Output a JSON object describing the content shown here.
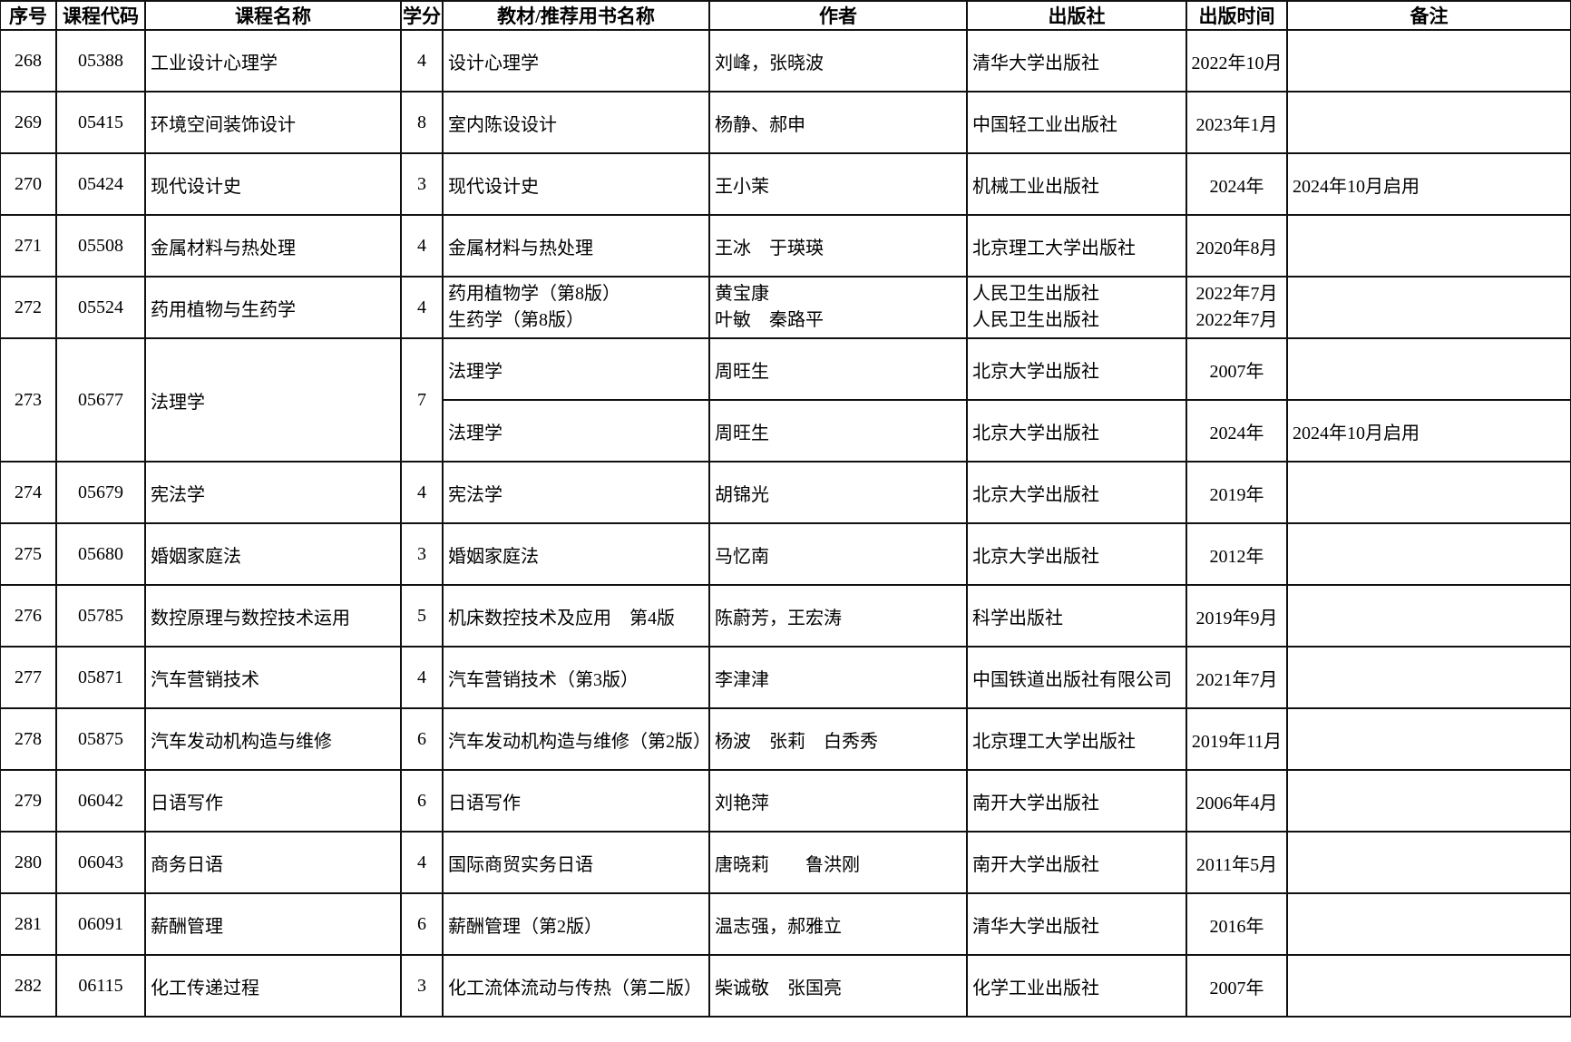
{
  "table": {
    "headers": [
      "序号",
      "课程代码",
      "课程名称",
      "学分",
      "教材/推荐用书名称",
      "作者",
      "出版社",
      "出版时间",
      "备注"
    ],
    "rows": [
      {
        "seq": "268",
        "code": "05388",
        "course": "工业设计心理学",
        "credits": "4",
        "split": false,
        "books": [
          {
            "title": "设计心理学",
            "author": "刘峰，张晓波",
            "publisher": "清华大学出版社",
            "date": "2022年10月",
            "remark": ""
          }
        ]
      },
      {
        "seq": "269",
        "code": "05415",
        "course": "环境空间装饰设计",
        "credits": "8",
        "split": false,
        "books": [
          {
            "title": "室内陈设设计",
            "author": "杨静、郝申",
            "publisher": "中国轻工业出版社",
            "date": "2023年1月",
            "remark": ""
          }
        ]
      },
      {
        "seq": "270",
        "code": "05424",
        "course": "现代设计史",
        "credits": "3",
        "split": false,
        "books": [
          {
            "title": "现代设计史",
            "author": "王小茉",
            "publisher": "机械工业出版社",
            "date": "2024年",
            "remark": "2024年10月启用"
          }
        ]
      },
      {
        "seq": "271",
        "code": "05508",
        "course": "金属材料与热处理",
        "credits": "4",
        "split": false,
        "books": [
          {
            "title": "金属材料与热处理",
            "author": "王冰　于瑛瑛",
            "publisher": "北京理工大学出版社",
            "date": "2020年8月",
            "remark": ""
          }
        ]
      },
      {
        "seq": "272",
        "code": "05524",
        "course": "药用植物与生药学",
        "credits": "4",
        "split": false,
        "books": [
          {
            "title": "药用植物学（第8版）",
            "author": "黄宝康",
            "publisher": "人民卫生出版社",
            "date": "2022年7月",
            "remark": ""
          },
          {
            "title": "生药学（第8版）",
            "author": "叶敏　秦路平",
            "publisher": "人民卫生出版社",
            "date": "2022年7月",
            "remark": ""
          }
        ]
      },
      {
        "seq": "273",
        "code": "05677",
        "course": "法理学",
        "credits": "7",
        "split": true,
        "books": [
          {
            "title": "法理学",
            "author": "周旺生",
            "publisher": "北京大学出版社",
            "date": "2007年",
            "remark": ""
          },
          {
            "title": "法理学",
            "author": "周旺生",
            "publisher": "北京大学出版社",
            "date": "2024年",
            "remark": "2024年10月启用"
          }
        ]
      },
      {
        "seq": "274",
        "code": "05679",
        "course": "宪法学",
        "credits": "4",
        "split": false,
        "books": [
          {
            "title": "宪法学",
            "author": "胡锦光",
            "publisher": "北京大学出版社",
            "date": "2019年",
            "remark": ""
          }
        ]
      },
      {
        "seq": "275",
        "code": "05680",
        "course": "婚姻家庭法",
        "credits": "3",
        "split": false,
        "books": [
          {
            "title": "婚姻家庭法",
            "author": "马忆南",
            "publisher": "北京大学出版社",
            "date": "2012年",
            "remark": ""
          }
        ]
      },
      {
        "seq": "276",
        "code": "05785",
        "course": "数控原理与数控技术运用",
        "credits": "5",
        "split": false,
        "books": [
          {
            "title": "机床数控技术及应用　第4版",
            "author": "陈蔚芳，王宏涛",
            "publisher": "科学出版社",
            "date": "2019年9月",
            "remark": ""
          }
        ]
      },
      {
        "seq": "277",
        "code": "05871",
        "course": "汽车营销技术",
        "credits": "4",
        "split": false,
        "books": [
          {
            "title": "汽车营销技术（第3版）",
            "author": "李津津",
            "publisher": "中国铁道出版社有限公司",
            "date": "2021年7月",
            "remark": ""
          }
        ]
      },
      {
        "seq": "278",
        "code": "05875",
        "course": "汽车发动机构造与维修",
        "credits": "6",
        "split": false,
        "books": [
          {
            "title": "汽车发动机构造与维修（第2版）",
            "author": "杨波　张莉　白秀秀",
            "publisher": "北京理工大学出版社",
            "date": "2019年11月",
            "remark": ""
          }
        ]
      },
      {
        "seq": "279",
        "code": "06042",
        "course": "日语写作",
        "credits": "6",
        "split": false,
        "books": [
          {
            "title": "日语写作",
            "author": "刘艳萍",
            "publisher": "南开大学出版社",
            "date": "2006年4月",
            "remark": ""
          }
        ]
      },
      {
        "seq": "280",
        "code": "06043",
        "course": "商务日语",
        "credits": "4",
        "split": false,
        "books": [
          {
            "title": "国际商贸实务日语",
            "author": "唐晓莉　　鲁洪刚",
            "publisher": "南开大学出版社",
            "date": "2011年5月",
            "remark": ""
          }
        ]
      },
      {
        "seq": "281",
        "code": "06091",
        "course": "薪酬管理",
        "credits": "6",
        "split": false,
        "books": [
          {
            "title": "薪酬管理（第2版）",
            "author": "温志强，郝雅立",
            "publisher": "清华大学出版社",
            "date": "2016年",
            "remark": ""
          }
        ]
      },
      {
        "seq": "282",
        "code": "06115",
        "course": "化工传递过程",
        "credits": "3",
        "split": false,
        "books": [
          {
            "title": "化工流体流动与传热（第二版）",
            "author": "柴诚敬　张国亮",
            "publisher": "化学工业出版社",
            "date": "2007年",
            "remark": ""
          }
        ]
      }
    ]
  }
}
